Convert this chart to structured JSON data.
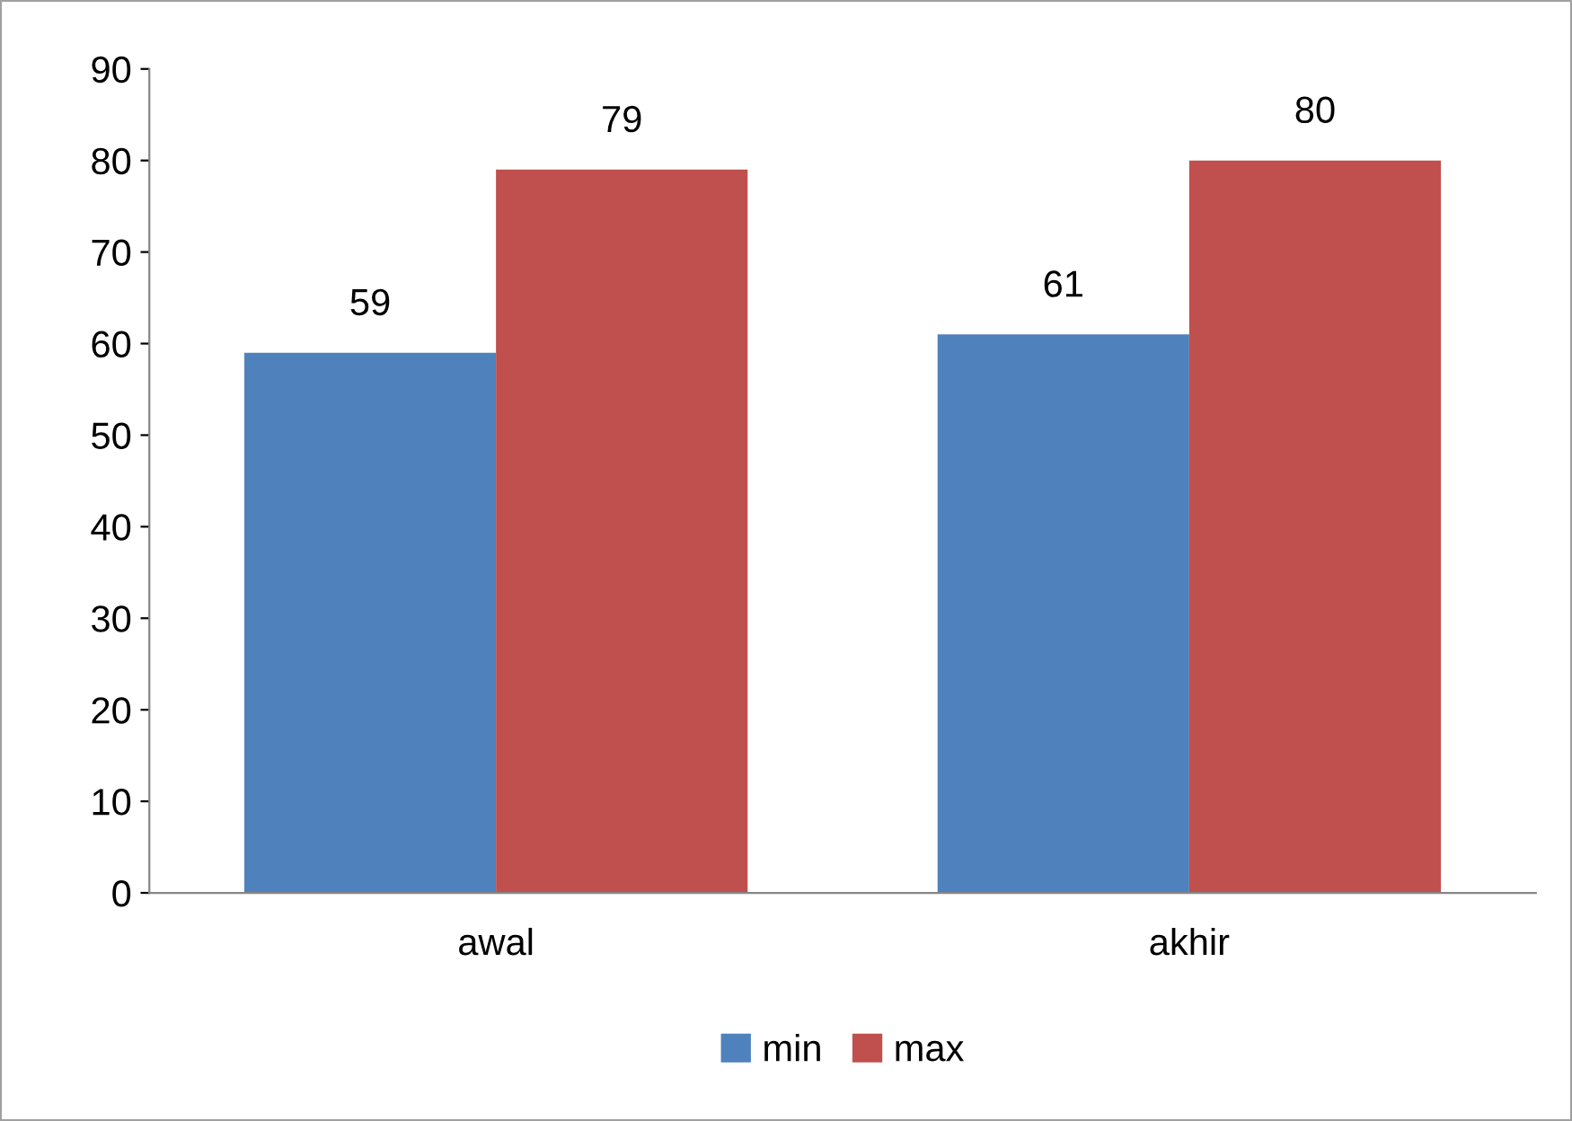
{
  "chart_data": {
    "type": "bar",
    "categories": [
      "awal",
      "akhir"
    ],
    "series": [
      {
        "name": "min",
        "color": "#4f81bd",
        "values": [
          59,
          61
        ]
      },
      {
        "name": "max",
        "color": "#c0504d",
        "values": [
          79,
          80
        ]
      }
    ],
    "ylim": [
      0,
      90
    ],
    "yticks": [
      0,
      10,
      20,
      30,
      40,
      50,
      60,
      70,
      80,
      90
    ],
    "grid": false,
    "legend": "bottom",
    "data_labels": true
  }
}
